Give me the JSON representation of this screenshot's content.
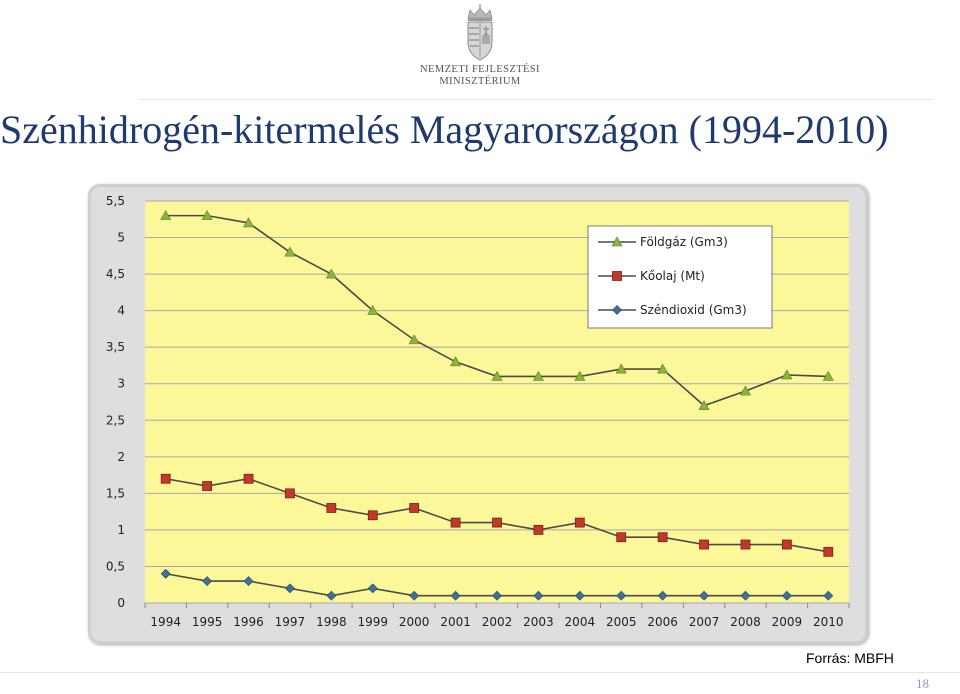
{
  "header": {
    "logo_line1": "NEMZETI FEJLESZTÉSI",
    "logo_line2": "MINISZTÉRIUM",
    "title": "Szénhidrogén-kitermelés Magyarországon (1994-2010)"
  },
  "chart_data": {
    "type": "line",
    "title": "",
    "xlabel": "",
    "ylabel": "",
    "x": [
      "1994",
      "1995",
      "1996",
      "1997",
      "1998",
      "1999",
      "2000",
      "2001",
      "2002",
      "2003",
      "2004",
      "2005",
      "2006",
      "2007",
      "2008",
      "2009",
      "2010"
    ],
    "y_ticks": [
      "0",
      "0,5",
      "1",
      "1,5",
      "2",
      "2,5",
      "3",
      "3,5",
      "4",
      "4,5",
      "5",
      "5,5"
    ],
    "ylim": [
      0,
      5.5
    ],
    "grid": true,
    "legend_position": "top-right",
    "plot_background": "#fcf89a",
    "series": [
      {
        "name": "Földgáz (Gm3)",
        "marker": "triangle",
        "color": "#8ab43c",
        "values": [
          5.3,
          5.3,
          5.2,
          4.8,
          4.5,
          4.0,
          3.6,
          3.3,
          3.1,
          3.1,
          3.1,
          3.2,
          3.2,
          2.7,
          2.9,
          3.12,
          3.1
        ]
      },
      {
        "name": "Kőolaj (Mt)",
        "marker": "square",
        "color": "#c0392b",
        "values": [
          1.7,
          1.6,
          1.7,
          1.5,
          1.3,
          1.2,
          1.3,
          1.1,
          1.1,
          1.0,
          1.1,
          0.9,
          0.9,
          0.8,
          0.8,
          0.8,
          0.7
        ]
      },
      {
        "name": "Széndioxid (Gm3)",
        "marker": "diamond",
        "color": "#3f6f9a",
        "values": [
          0.4,
          0.3,
          0.3,
          0.2,
          0.1,
          0.2,
          0.1,
          0.1,
          0.1,
          0.1,
          0.1,
          0.1,
          0.1,
          0.1,
          0.1,
          0.1,
          0.1
        ]
      }
    ]
  },
  "footer": {
    "source": "Forrás: MBFH",
    "page_number": "18"
  }
}
